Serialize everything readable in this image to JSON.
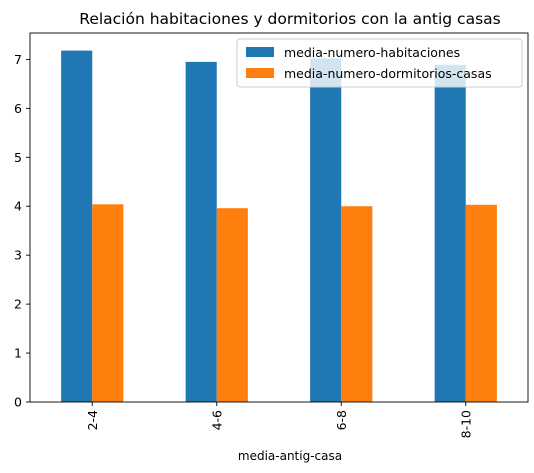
{
  "chart_data": {
    "type": "bar",
    "title": "Relación habitaciones y dormitorios con la antig casas",
    "xlabel": "media-antig-casa",
    "ylabel": "",
    "categories": [
      "2-4",
      "4-6",
      "6-8",
      "8-10"
    ],
    "series": [
      {
        "name": "media-numero-habitaciones",
        "color": "#1f77b4",
        "values": [
          7.18,
          6.95,
          7.02,
          6.89
        ]
      },
      {
        "name": "media-numero-dormitorios-casas",
        "color": "#ff7f0e",
        "values": [
          4.04,
          3.96,
          4.0,
          4.03
        ]
      }
    ],
    "ylim": [
      0,
      7.54
    ],
    "yticks": [
      0,
      1,
      2,
      3,
      4,
      5,
      6,
      7
    ],
    "legend": "top-right",
    "grid": false
  }
}
